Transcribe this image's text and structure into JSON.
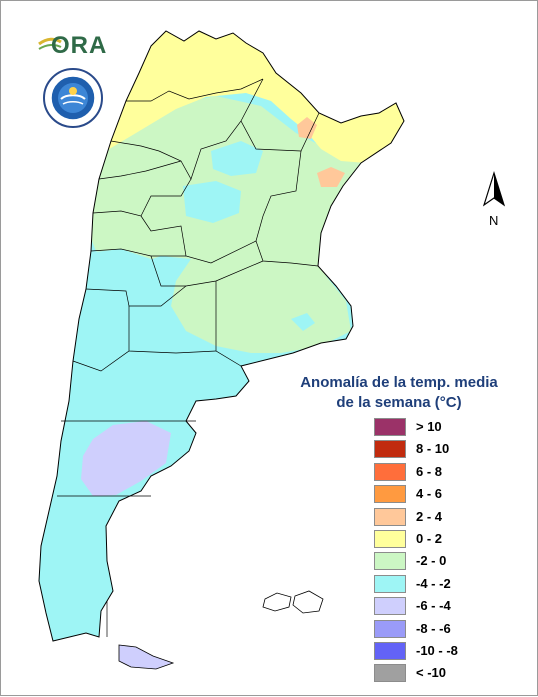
{
  "logo": {
    "text": "ORA",
    "icon_name": "ora-logo",
    "color": "#2f6a47",
    "accent": "#d9b630"
  },
  "seal": {
    "icon_name": "weather-service-seal"
  },
  "compass": {
    "label": "N",
    "icon_name": "north-arrow-icon"
  },
  "legend": {
    "title_line1": "Anomalía de la temp. media",
    "title_line2": "de la semana (°C)",
    "title_color": "#1f3f7a",
    "items": [
      {
        "label": "> 10",
        "color": "#9b3268"
      },
      {
        "label": "8 - 10",
        "color": "#c12b0f"
      },
      {
        "label": "6 - 8",
        "color": "#ff6e3b"
      },
      {
        "label": "4 - 6",
        "color": "#ff9a40"
      },
      {
        "label": "2 - 4",
        "color": "#ffc89a"
      },
      {
        "label": "0 - 2",
        "color": "#ffff9c"
      },
      {
        "label": "-2 - 0",
        "color": "#ccf7c4"
      },
      {
        "label": "-4 - -2",
        "color": "#9ef5f5"
      },
      {
        "label": "-6 - -4",
        "color": "#cfcffd"
      },
      {
        "label": "-8 - -6",
        "color": "#9a9bf8"
      },
      {
        "label": "-10 - -8",
        "color": "#6363f7"
      },
      {
        "label": "< -10",
        "color": "#a0a0a0"
      }
    ]
  },
  "map_colors": {
    "yellow": "#ffff9c",
    "green": "#ccf7c4",
    "cyan": "#9ef5f5",
    "lavender": "#cfcffd",
    "peach": "#ffc89a"
  }
}
